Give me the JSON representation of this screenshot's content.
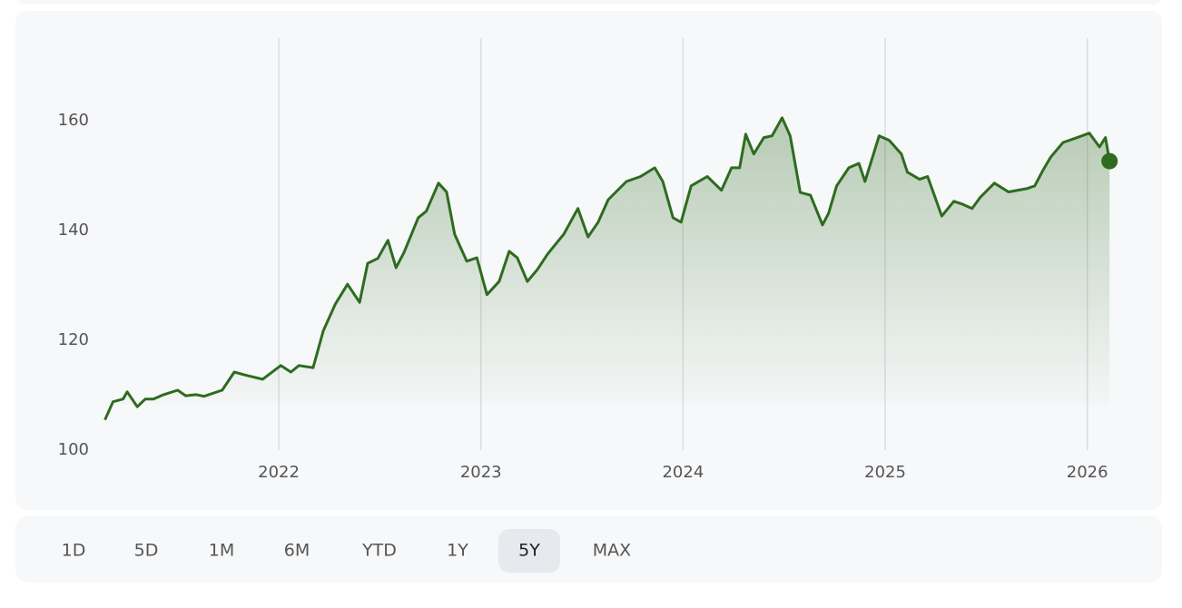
{
  "chart_data": {
    "type": "line",
    "x": [
      2021.14,
      2021.18,
      2021.23,
      2021.25,
      2021.3,
      2021.34,
      2021.38,
      2021.43,
      2021.5,
      2021.54,
      2021.59,
      2021.63,
      2021.72,
      2021.78,
      2021.83,
      2021.92,
      2022.01,
      2022.06,
      2022.1,
      2022.17,
      2022.22,
      2022.28,
      2022.34,
      2022.4,
      2022.44,
      2022.49,
      2022.54,
      2022.58,
      2022.62,
      2022.69,
      2022.73,
      2022.79,
      2022.83,
      2022.87,
      2022.93,
      2022.98,
      2023.03,
      2023.09,
      2023.14,
      2023.18,
      2023.23,
      2023.28,
      2023.33,
      2023.41,
      2023.48,
      2023.53,
      2023.58,
      2023.63,
      2023.72,
      2023.79,
      2023.86,
      2023.9,
      2023.95,
      2023.99,
      2024.04,
      2024.12,
      2024.19,
      2024.24,
      2024.28,
      2024.31,
      2024.35,
      2024.4,
      2024.44,
      2024.49,
      2024.53,
      2024.58,
      2024.63,
      2024.69,
      2024.72,
      2024.76,
      2024.82,
      2024.87,
      2024.9,
      2024.97,
      2025.02,
      2025.08,
      2025.11,
      2025.17,
      2025.21,
      2025.28,
      2025.34,
      2025.38,
      2025.43,
      2025.47,
      2025.54,
      2025.61,
      2025.7,
      2025.74,
      2025.78,
      2025.82,
      2025.88,
      2025.95,
      2026.01,
      2026.06,
      2026.09,
      2026.11
    ],
    "series": [
      {
        "color": "#2e6b1f",
        "values": [
          105.5,
          108.8,
          109.3,
          110.6,
          107.9,
          109.3,
          109.3,
          110.1,
          110.9,
          109.9,
          110.1,
          109.8,
          110.9,
          114.2,
          113.7,
          112.9,
          115.4,
          114.2,
          115.4,
          115.0,
          121.7,
          126.6,
          130.2,
          126.9,
          134.0,
          134.9,
          138.2,
          133.2,
          136.0,
          142.3,
          143.5,
          148.6,
          147.0,
          139.3,
          134.4,
          135.0,
          128.3,
          130.7,
          136.2,
          135.0,
          130.7,
          132.9,
          135.7,
          139.3,
          144.0,
          138.8,
          141.5,
          145.6,
          148.9,
          149.8,
          151.4,
          148.9,
          142.3,
          141.5,
          148.1,
          149.8,
          147.3,
          151.4,
          151.4,
          157.5,
          153.9,
          156.9,
          157.2,
          160.5,
          157.2,
          146.9,
          146.4,
          141.0,
          143.1,
          148.1,
          151.4,
          152.2,
          148.9,
          157.2,
          156.4,
          153.9,
          150.6,
          149.3,
          149.8,
          142.6,
          145.3,
          144.8,
          144.0,
          146.0,
          148.6,
          147.0,
          147.6,
          148.1,
          150.9,
          153.4,
          156.0,
          156.9,
          157.7,
          155.2,
          156.9,
          152.6
        ]
      }
    ],
    "xlim": [
      2021.07,
      2026.19
    ],
    "xticks": [
      2022,
      2023,
      2024,
      2025,
      2026
    ],
    "ylim": [
      100,
      175
    ],
    "yticks": [
      100,
      120,
      140,
      160
    ],
    "grid": "x"
  },
  "ranges": [
    "1D",
    "5D",
    "1M",
    "6M",
    "YTD",
    "1Y",
    "5Y",
    "MAX"
  ],
  "selected": "5Y"
}
